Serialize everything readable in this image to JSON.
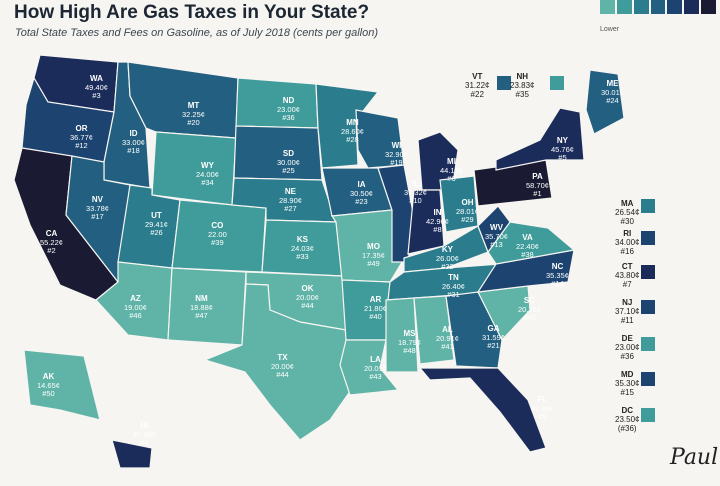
{
  "header": {
    "title": "How High Are Gas Taxes in Your State?",
    "subtitle": "Total State Taxes and Fees on Gasoline, as of July 2018 (cents per gallon)"
  },
  "legend": {
    "label": "Lower",
    "colors": [
      "#5fb3a7",
      "#3f9c9b",
      "#2b7d8e",
      "#235f80",
      "#1d4470",
      "#1b2c5a",
      "#1a1a33"
    ]
  },
  "signature": "Paul",
  "states": [
    {
      "id": "WA",
      "abbr": "WA",
      "tax": "49.40¢",
      "rank": "#3"
    },
    {
      "id": "OR",
      "abbr": "OR",
      "tax": "36.77¢",
      "rank": "#12"
    },
    {
      "id": "CA",
      "abbr": "CA",
      "tax": "55.22¢",
      "rank": "#2"
    },
    {
      "id": "ID",
      "abbr": "ID",
      "tax": "33.00¢",
      "rank": "#18"
    },
    {
      "id": "NV",
      "abbr": "NV",
      "tax": "33.78¢",
      "rank": "#17"
    },
    {
      "id": "MT",
      "abbr": "MT",
      "tax": "32.25¢",
      "rank": "#20"
    },
    {
      "id": "WY",
      "abbr": "WY",
      "tax": "24.00¢",
      "rank": "#34"
    },
    {
      "id": "UT",
      "abbr": "UT",
      "tax": "29.41¢",
      "rank": "#26"
    },
    {
      "id": "AZ",
      "abbr": "AZ",
      "tax": "19.00¢",
      "rank": "#46"
    },
    {
      "id": "CO",
      "abbr": "CO",
      "tax": "22.00",
      "rank": "#39"
    },
    {
      "id": "NM",
      "abbr": "NM",
      "tax": "18.88¢",
      "rank": "#47"
    },
    {
      "id": "ND",
      "abbr": "ND",
      "tax": "23.00¢",
      "rank": "#36"
    },
    {
      "id": "SD",
      "abbr": "SD",
      "tax": "30.00¢",
      "rank": "#25"
    },
    {
      "id": "NE",
      "abbr": "NE",
      "tax": "28.90¢",
      "rank": "#27"
    },
    {
      "id": "KS",
      "abbr": "KS",
      "tax": "24.03¢",
      "rank": "#33"
    },
    {
      "id": "OK",
      "abbr": "OK",
      "tax": "20.00¢",
      "rank": "#44"
    },
    {
      "id": "TX",
      "abbr": "TX",
      "tax": "20.00¢",
      "rank": "#44"
    },
    {
      "id": "MN",
      "abbr": "MN",
      "tax": "28.60¢",
      "rank": "#28"
    },
    {
      "id": "IA",
      "abbr": "IA",
      "tax": "30.50¢",
      "rank": "#23"
    },
    {
      "id": "MO",
      "abbr": "MO",
      "tax": "17.35¢",
      "rank": "#49"
    },
    {
      "id": "AR",
      "abbr": "AR",
      "tax": "21.80¢",
      "rank": "#40"
    },
    {
      "id": "LA",
      "abbr": "LA",
      "tax": "20.01¢",
      "rank": "#43"
    },
    {
      "id": "WI",
      "abbr": "WI",
      "tax": "32.90¢",
      "rank": "#19"
    },
    {
      "id": "IL",
      "abbr": "IL",
      "tax": "37.32¢",
      "rank": "#10"
    },
    {
      "id": "MI",
      "abbr": "MI",
      "tax": "44.13¢",
      "rank": "#6"
    },
    {
      "id": "IN",
      "abbr": "IN",
      "tax": "42.90¢",
      "rank": "#8"
    },
    {
      "id": "OH",
      "abbr": "OH",
      "tax": "28.01¢",
      "rank": "#29"
    },
    {
      "id": "KY",
      "abbr": "KY",
      "tax": "26.00¢",
      "rank": "#32"
    },
    {
      "id": "TN",
      "abbr": "TN",
      "tax": "26.40¢",
      "rank": "#31"
    },
    {
      "id": "MS",
      "abbr": "MS",
      "tax": "18.79¢",
      "rank": "#48"
    },
    {
      "id": "AL",
      "abbr": "AL",
      "tax": "20.91¢",
      "rank": "#41"
    },
    {
      "id": "GA",
      "abbr": "GA",
      "tax": "31.59¢",
      "rank": "#21"
    },
    {
      "id": "FL",
      "abbr": "FL",
      "tax": "41.36¢",
      "rank": "#9"
    },
    {
      "id": "SC",
      "abbr": "SC",
      "tax": "20.75¢",
      "rank": "#42"
    },
    {
      "id": "NC",
      "abbr": "NC",
      "tax": "35.35¢",
      "rank": "#14"
    },
    {
      "id": "VA",
      "abbr": "VA",
      "tax": "22.40¢",
      "rank": "#38"
    },
    {
      "id": "WV",
      "abbr": "WV",
      "tax": "35.70¢",
      "rank": "#13"
    },
    {
      "id": "PA",
      "abbr": "PA",
      "tax": "58.70¢",
      "rank": "#1"
    },
    {
      "id": "NY",
      "abbr": "NY",
      "tax": "45.76¢",
      "rank": "#5"
    },
    {
      "id": "ME",
      "abbr": "ME",
      "tax": "30.01¢",
      "rank": "#24"
    },
    {
      "id": "AK",
      "abbr": "AK",
      "tax": "14.65¢",
      "rank": "#50"
    },
    {
      "id": "HI",
      "abbr": "HI",
      "tax": "47.88¢",
      "rank": "#4"
    },
    {
      "id": "VT",
      "abbr": "VT",
      "tax": "31.22¢",
      "rank": "#22"
    },
    {
      "id": "NH",
      "abbr": "NH",
      "tax": "23.83¢",
      "rank": "#35"
    },
    {
      "id": "MA",
      "abbr": "MA",
      "tax": "26.54¢",
      "rank": "#30"
    },
    {
      "id": "RI",
      "abbr": "RI",
      "tax": "34.00¢",
      "rank": "#16"
    },
    {
      "id": "CT",
      "abbr": "CT",
      "tax": "43.80¢",
      "rank": "#7"
    },
    {
      "id": "NJ",
      "abbr": "NJ",
      "tax": "37.10¢",
      "rank": "#11"
    },
    {
      "id": "DE",
      "abbr": "DE",
      "tax": "23.00¢",
      "rank": "#36"
    },
    {
      "id": "MD",
      "abbr": "MD",
      "tax": "35.30¢",
      "rank": "#15"
    },
    {
      "id": "DC",
      "abbr": "DC",
      "tax": "23.50¢",
      "rank": "(#36)"
    }
  ]
}
